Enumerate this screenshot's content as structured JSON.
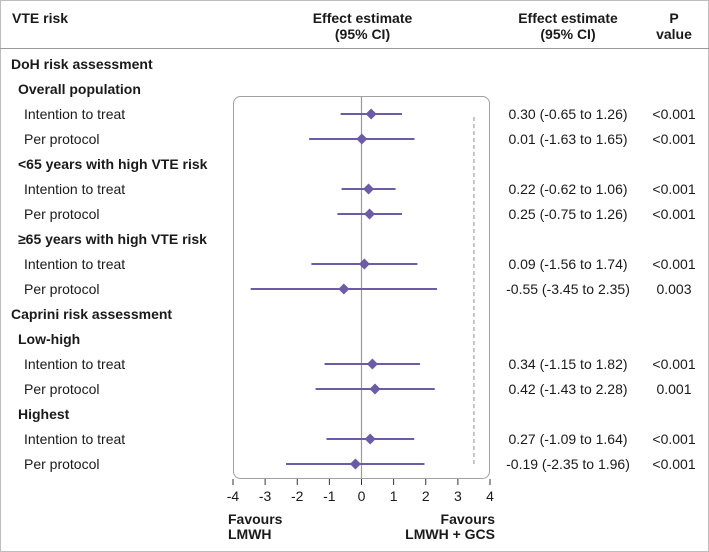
{
  "header": {
    "col1": "VTE risk",
    "col2_line1": "Effect estimate",
    "col2_line2": "(95% CI)",
    "col3_line1": "Effect estimate",
    "col3_line2": "(95% CI)",
    "col4_line1": "P",
    "col4_line2": "value"
  },
  "favours": {
    "left_line1": "Favours",
    "left_line2": "LMWH",
    "right_line1": "Favours",
    "right_line2": "LMWH + GCS"
  },
  "colors": {
    "marker": "#6b5ca5",
    "ci_line": "#6b5ca5",
    "zero_line": "#9a9a9a",
    "dashed_line": "#8f8f8f",
    "plot_border": "#a0a0a0"
  },
  "chart_data": {
    "type": "forest",
    "xlim": [
      -4,
      4
    ],
    "xticks": [
      "-4",
      "-3",
      "-2",
      "-1",
      "0",
      "1",
      "2",
      "3",
      "4"
    ],
    "reference_line": 0,
    "dashed_line": 3.5,
    "rows": [
      {
        "label": "DoH risk assessment",
        "kind": "group"
      },
      {
        "label": "Overall population",
        "kind": "subgroup"
      },
      {
        "label": "Intention to treat",
        "kind": "data",
        "est": 0.3,
        "lo": -0.65,
        "hi": 1.26,
        "ci_text": "0.30 (-0.65 to 1.26)",
        "p": "<0.001"
      },
      {
        "label": "Per protocol",
        "kind": "data",
        "est": 0.01,
        "lo": -1.63,
        "hi": 1.65,
        "ci_text": "0.01 (-1.63 to 1.65)",
        "p": "<0.001"
      },
      {
        "label": "<65 years with high VTE risk",
        "kind": "subgroup"
      },
      {
        "label": "Intention to treat",
        "kind": "data",
        "est": 0.22,
        "lo": -0.62,
        "hi": 1.06,
        "ci_text": "0.22 (-0.62 to 1.06)",
        "p": "<0.001"
      },
      {
        "label": "Per protocol",
        "kind": "data",
        "est": 0.25,
        "lo": -0.75,
        "hi": 1.26,
        "ci_text": "0.25 (-0.75 to 1.26)",
        "p": "<0.001"
      },
      {
        "label": "≥65 years with high VTE risk",
        "kind": "subgroup"
      },
      {
        "label": "Intention to treat",
        "kind": "data",
        "est": 0.09,
        "lo": -1.56,
        "hi": 1.74,
        "ci_text": "0.09 (-1.56 to 1.74)",
        "p": "<0.001"
      },
      {
        "label": "Per protocol",
        "kind": "data",
        "est": -0.55,
        "lo": -3.45,
        "hi": 2.35,
        "ci_text": "-0.55 (-3.45 to 2.35)",
        "p": "0.003"
      },
      {
        "label": "Caprini risk assessment",
        "kind": "group"
      },
      {
        "label": "Low-high",
        "kind": "subgroup"
      },
      {
        "label": "Intention to treat",
        "kind": "data",
        "est": 0.34,
        "lo": -1.15,
        "hi": 1.82,
        "ci_text": "0.34 (-1.15 to 1.82)",
        "p": "<0.001"
      },
      {
        "label": "Per protocol",
        "kind": "data",
        "est": 0.42,
        "lo": -1.43,
        "hi": 2.28,
        "ci_text": "0.42 (-1.43 to 2.28)",
        "p": "0.001"
      },
      {
        "label": "Highest",
        "kind": "subgroup"
      },
      {
        "label": "Intention to treat",
        "kind": "data",
        "est": 0.27,
        "lo": -1.09,
        "hi": 1.64,
        "ci_text": "0.27 (-1.09 to 1.64)",
        "p": "<0.001"
      },
      {
        "label": "Per protocol",
        "kind": "data",
        "est": -0.19,
        "lo": -2.35,
        "hi": 1.96,
        "ci_text": "-0.19 (-2.35 to 1.96)",
        "p": "<0.001"
      }
    ]
  }
}
